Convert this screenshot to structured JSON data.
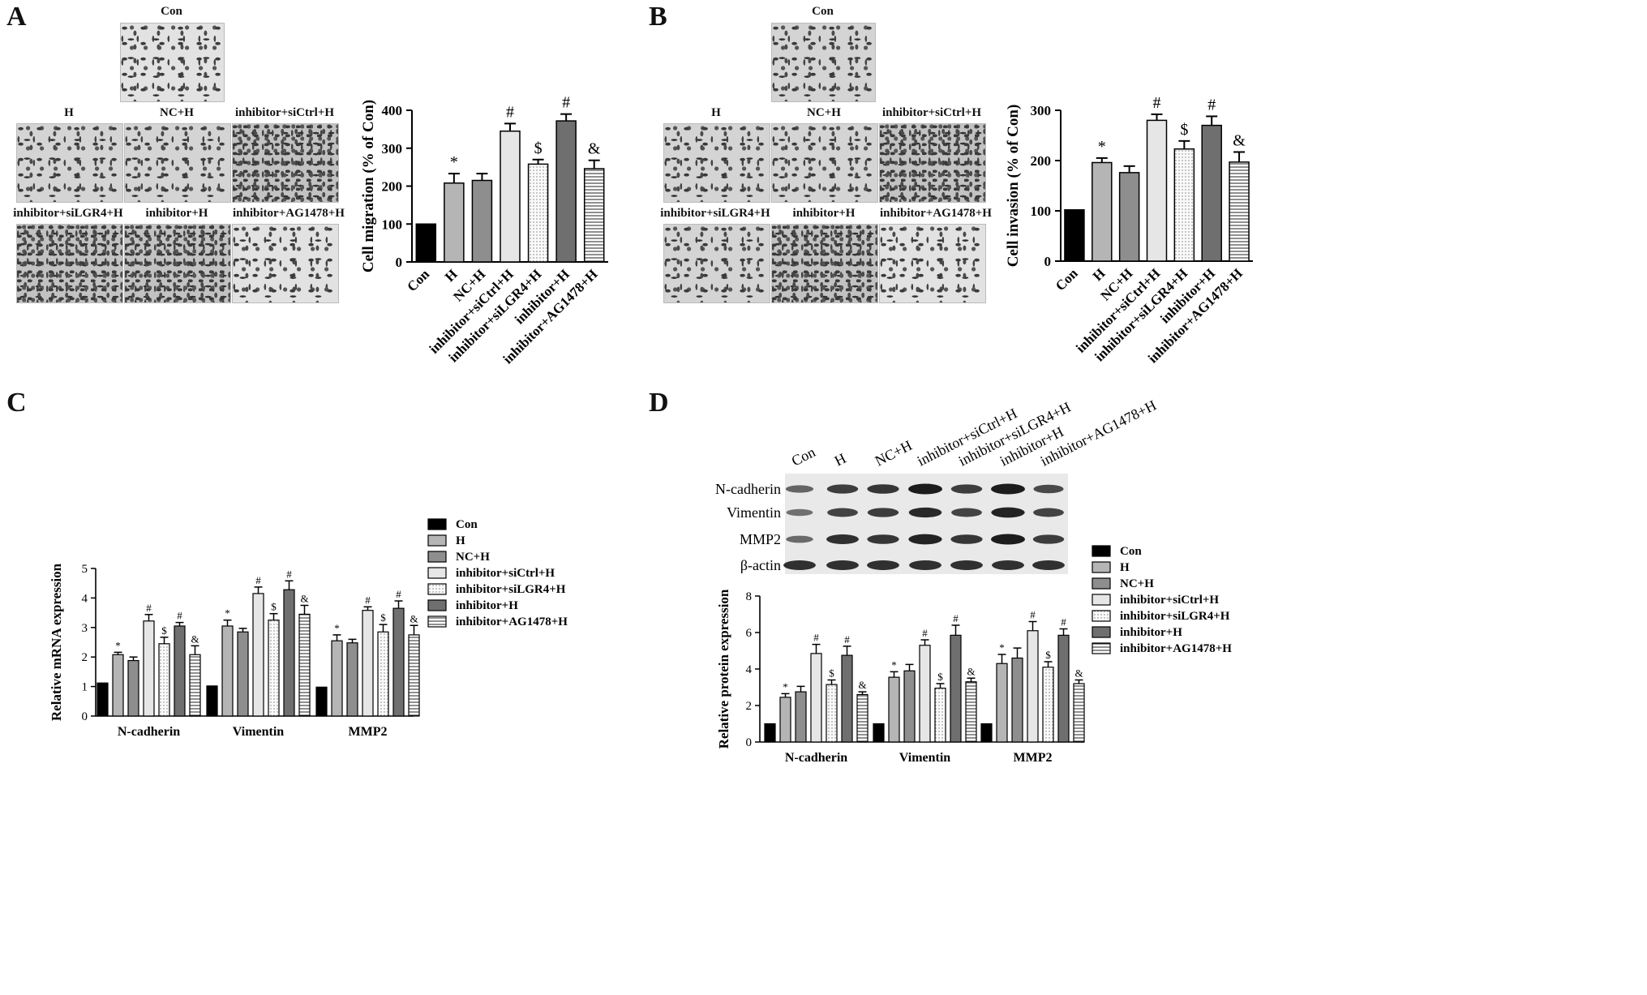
{
  "panels": {
    "A": {
      "letter": "A",
      "image_labels": [
        "Con",
        "H",
        "NC+H",
        "inhibitor+siCtrl+H",
        "inhibitor+siLGR4+H",
        "inhibitor+H",
        "inhibitor+AG1478+H"
      ]
    },
    "B": {
      "letter": "B",
      "image_labels": [
        "Con",
        "H",
        "NC+H",
        "inhibitor+siCtrl+H",
        "inhibitor+siLGR4+H",
        "inhibitor+H",
        "inhibitor+AG1478+H"
      ]
    },
    "C": {
      "letter": "C"
    },
    "D": {
      "letter": "D",
      "lane_labels": [
        "Con",
        "H",
        "NC+H",
        "inhibitor+siCtrl+H",
        "inhibitor+siLGR4+H",
        "inhibitor+H",
        "inhibitor+AG1478+H"
      ],
      "blot_rows": [
        "N-cadherin",
        "Vimentin",
        "MMP2",
        "β-actin"
      ],
      "band_intensity": [
        [
          0.45,
          0.75,
          0.8,
          1.0,
          0.75,
          1.0,
          0.65
        ],
        [
          0.35,
          0.7,
          0.75,
          0.9,
          0.7,
          0.95,
          0.7
        ],
        [
          0.4,
          0.85,
          0.8,
          0.95,
          0.8,
          1.0,
          0.75
        ],
        [
          0.85,
          0.85,
          0.85,
          0.85,
          0.85,
          0.85,
          0.85
        ]
      ]
    }
  },
  "colors": {
    "Con": "#000000",
    "H": "#b5b5b5",
    "NC+H": "#8e8e8e",
    "inhibitor+siCtrl+H": "#e6e6e6",
    "inhibitor+siLGR4+H": "#f4f4f4",
    "inhibitor+H": "#6f6f6f",
    "inhibitor+AG1478+H": "#ffffff"
  },
  "chart_data": [
    {
      "id": "A",
      "type": "bar",
      "categories": [
        "Con",
        "H",
        "NC+H",
        "inhibitor+siCtrl+H",
        "inhibitor+siLGR4+H",
        "inhibitor+H",
        "inhibitor+AG1478+H"
      ],
      "values": [
        100,
        208,
        215,
        345,
        258,
        372,
        246
      ],
      "errors": [
        0,
        25,
        18,
        20,
        12,
        18,
        22
      ],
      "markers": [
        "",
        "*",
        "",
        "#",
        "$",
        "#",
        "&"
      ],
      "ylabel": "Cell migration (% of Con)",
      "ylim": [
        0,
        400
      ],
      "yticks": [
        0,
        100,
        200,
        300,
        400
      ]
    },
    {
      "id": "B",
      "type": "bar",
      "categories": [
        "Con",
        "H",
        "NC+H",
        "inhibitor+siCtrl+H",
        "inhibitor+siLGR4+H",
        "inhibitor+H",
        "inhibitor+AG1478+H"
      ],
      "values": [
        102,
        196,
        176,
        280,
        223,
        270,
        197
      ],
      "errors": [
        0,
        9,
        13,
        12,
        16,
        18,
        20
      ],
      "markers": [
        "",
        "*",
        "",
        "#",
        "$",
        "#",
        "&"
      ],
      "ylabel": "Cell invasion (% of Con)",
      "ylim": [
        0,
        300
      ],
      "yticks": [
        0,
        100,
        200,
        300
      ]
    },
    {
      "id": "C",
      "type": "bar",
      "categories": [
        "N-cadherin",
        "Vimentin",
        "MMP2"
      ],
      "series": [
        {
          "name": "Con",
          "values": [
            1.12,
            1.02,
            0.98
          ],
          "errors": [
            0,
            0,
            0
          ],
          "markers": [
            "",
            "",
            ""
          ]
        },
        {
          "name": "H",
          "values": [
            2.08,
            3.05,
            2.55
          ],
          "errors": [
            0.08,
            0.2,
            0.2
          ],
          "markers": [
            "*",
            "*",
            "*"
          ]
        },
        {
          "name": "NC+H",
          "values": [
            1.88,
            2.85,
            2.48
          ],
          "errors": [
            0.12,
            0.12,
            0.12
          ],
          "markers": [
            "",
            "",
            ""
          ]
        },
        {
          "name": "inhibitor+siCtrl+H",
          "values": [
            3.22,
            4.15,
            3.58
          ],
          "errors": [
            0.22,
            0.22,
            0.12
          ],
          "markers": [
            "#",
            "#",
            "#"
          ]
        },
        {
          "name": "inhibitor+siLGR4+H",
          "values": [
            2.45,
            3.25,
            2.85
          ],
          "errors": [
            0.22,
            0.22,
            0.25
          ],
          "markers": [
            "$",
            "$",
            "$"
          ]
        },
        {
          "name": "inhibitor+H",
          "values": [
            3.05,
            4.28,
            3.65
          ],
          "errors": [
            0.12,
            0.3,
            0.25
          ],
          "markers": [
            "#",
            "#",
            "#"
          ]
        },
        {
          "name": "inhibitor+AG1478+H",
          "values": [
            2.08,
            3.45,
            2.75
          ],
          "errors": [
            0.3,
            0.3,
            0.32
          ],
          "markers": [
            "&",
            "&",
            "&"
          ]
        }
      ],
      "ylabel": "Relative mRNA expression",
      "ylim": [
        0,
        5
      ],
      "yticks": [
        0,
        1,
        2,
        3,
        4,
        5
      ],
      "legend": "right"
    },
    {
      "id": "D",
      "type": "bar",
      "categories": [
        "N-cadherin",
        "Vimentin",
        "MMP2"
      ],
      "series": [
        {
          "name": "Con",
          "values": [
            1.0,
            1.0,
            1.0
          ],
          "errors": [
            0,
            0,
            0
          ],
          "markers": [
            "",
            "",
            ""
          ]
        },
        {
          "name": "H",
          "values": [
            2.45,
            3.55,
            4.3
          ],
          "errors": [
            0.2,
            0.3,
            0.5
          ],
          "markers": [
            "*",
            "*",
            "*"
          ]
        },
        {
          "name": "NC+H",
          "values": [
            2.75,
            3.9,
            4.6
          ],
          "errors": [
            0.3,
            0.35,
            0.55
          ],
          "markers": [
            "",
            "",
            ""
          ]
        },
        {
          "name": "inhibitor+siCtrl+H",
          "values": [
            4.85,
            5.3,
            6.1
          ],
          "errors": [
            0.5,
            0.3,
            0.5
          ],
          "markers": [
            "#",
            "#",
            "#"
          ]
        },
        {
          "name": "inhibitor+siLGR4+H",
          "values": [
            3.15,
            2.95,
            4.1
          ],
          "errors": [
            0.25,
            0.25,
            0.3
          ],
          "markers": [
            "$",
            "$",
            "$"
          ]
        },
        {
          "name": "inhibitor+H",
          "values": [
            4.75,
            5.85,
            5.85
          ],
          "errors": [
            0.5,
            0.55,
            0.35
          ],
          "markers": [
            "#",
            "#",
            "#"
          ]
        },
        {
          "name": "inhibitor+AG1478+H",
          "values": [
            2.6,
            3.3,
            3.2
          ],
          "errors": [
            0.15,
            0.2,
            0.2
          ],
          "markers": [
            "&",
            "&",
            "&"
          ]
        }
      ],
      "ylabel": "Relative protein expression",
      "ylim": [
        0,
        8
      ],
      "yticks": [
        0,
        2,
        4,
        6,
        8
      ],
      "legend": "right"
    }
  ]
}
